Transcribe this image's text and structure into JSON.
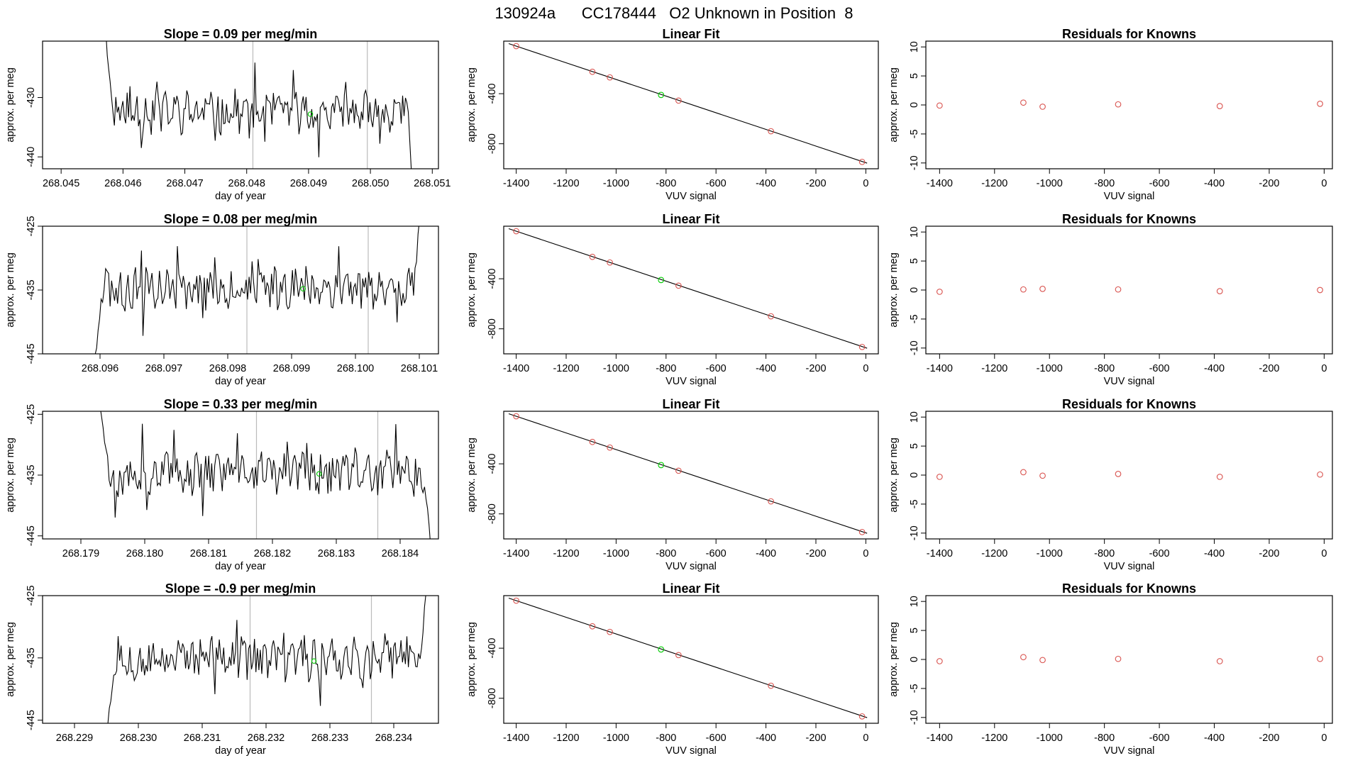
{
  "figure_title": "130924a      CC178444   O2 Unknown in Position  8",
  "colors": {
    "trace": "#000000",
    "highlight": "#00cc00",
    "known": "#d9534f",
    "vline": "#bbbbbb",
    "axis": "#000000"
  },
  "chart_data": [
    {
      "type": "line",
      "title": "Slope =  0.09  per meg/min",
      "xlabel": "day of year",
      "ylabel": "approx. per meg",
      "xlim": [
        268.0447,
        268.0511
      ],
      "ylim": [
        -442,
        -420.5
      ],
      "xticks": [
        "268.045",
        "268.046",
        "268.047",
        "268.048",
        "268.049",
        "268.050",
        "268.051"
      ],
      "xtick_values": [
        268.045,
        268.046,
        268.047,
        268.048,
        268.049,
        268.05,
        268.051
      ],
      "yticks": [
        "-430",
        "-440"
      ],
      "ytick_values": [
        -430,
        -440
      ],
      "trace_start": 268.0457,
      "trace_end": 268.05075,
      "trace_base": -432.5,
      "trace_entry": -417,
      "trace_exit": -460,
      "trace_seed": 11,
      "vlines": [
        268.0481,
        268.04995
      ],
      "highlight_point": {
        "x": 268.04903,
        "y": -432.8
      }
    },
    {
      "type": "line",
      "title": "Slope =  0.08  per meg/min",
      "xlabel": "day of year",
      "ylabel": "approx. per meg",
      "xlim": [
        268.0951,
        268.1013
      ],
      "ylim": [
        -445,
        -425
      ],
      "xticks": [
        "268.096",
        "268.097",
        "268.098",
        "268.099",
        "268.100",
        "268.101"
      ],
      "xtick_values": [
        268.096,
        268.097,
        268.098,
        268.099,
        268.1,
        268.101
      ],
      "yticks": [
        "-425",
        "-435",
        "-445"
      ],
      "ytick_values": [
        -425,
        -435,
        -445
      ],
      "trace_start": 268.0959,
      "trace_end": 268.10105,
      "trace_base": -434.5,
      "trace_entry": -448,
      "trace_exit": -420,
      "trace_seed": 23,
      "vlines": [
        268.0983,
        268.1002
      ],
      "highlight_point": {
        "x": 268.09918,
        "y": -434.8
      }
    },
    {
      "type": "line",
      "title": "Slope =  0.33  per meg/min",
      "xlabel": "day of year",
      "ylabel": "approx. per meg",
      "xlim": [
        268.1784,
        268.1846
      ],
      "ylim": [
        -445.5,
        -424.5
      ],
      "xticks": [
        "268.179",
        "268.180",
        "268.181",
        "268.182",
        "268.183",
        "268.184"
      ],
      "xtick_values": [
        268.179,
        268.18,
        268.181,
        268.182,
        268.183,
        268.184
      ],
      "yticks": [
        "-425",
        "-435",
        "-445"
      ],
      "ytick_values": [
        -425,
        -435,
        -445
      ],
      "trace_start": 268.1793,
      "trace_end": 268.1845,
      "trace_base": -434.5,
      "trace_entry": -423,
      "trace_exit": -448,
      "trace_seed": 37,
      "vlines": [
        268.18175,
        268.18365
      ],
      "highlight_point": {
        "x": 268.18273,
        "y": -434.8
      }
    },
    {
      "type": "line",
      "title": "Slope =  -0.9  per meg/min",
      "xlabel": "day of year",
      "ylabel": "approx. per meg",
      "xlim": [
        268.2285,
        268.2347
      ],
      "ylim": [
        -445.5,
        -425
      ],
      "xticks": [
        "268.229",
        "268.230",
        "268.231",
        "268.232",
        "268.233",
        "268.234"
      ],
      "xtick_values": [
        268.229,
        268.23,
        268.231,
        268.232,
        268.233,
        268.234
      ],
      "yticks": [
        "-425",
        "-435",
        "-445"
      ],
      "ytick_values": [
        -425,
        -435,
        -445
      ],
      "trace_start": 268.2295,
      "trace_end": 268.23455,
      "trace_base": -435,
      "trace_entry": -447,
      "trace_exit": -420,
      "trace_seed": 53,
      "vlines": [
        268.23175,
        268.23365
      ],
      "highlight_point": {
        "x": 268.23275,
        "y": -435.5
      }
    },
    {
      "type": "scatter",
      "title": "Linear Fit",
      "xlabel": "VUV signal",
      "ylabel": "approx. per meg",
      "xlim": [
        -1450,
        50
      ],
      "ylim": [
        -1000,
        20
      ],
      "xticks": [
        "-1400",
        "-1200",
        "-1000",
        "-800",
        "-600",
        "-400",
        "-200",
        "0"
      ],
      "xtick_values": [
        -1400,
        -1200,
        -1000,
        -800,
        -600,
        -400,
        -200,
        0
      ],
      "yticks": [
        "-400",
        "-800"
      ],
      "ytick_values": [
        -400,
        -800
      ],
      "known_points": [
        [
          -1400,
          -20
        ],
        [
          -1095,
          -225
        ],
        [
          -1025,
          -270
        ],
        [
          -750,
          -455
        ],
        [
          -380,
          -700
        ],
        [
          -15,
          -945
        ]
      ],
      "unknown_point": [
        -820,
        -410
      ],
      "fit_line": [
        [
          -1430,
          0
        ],
        [
          5,
          -955
        ]
      ]
    },
    {
      "type": "scatter",
      "title": "Linear Fit",
      "xlabel": "VUV signal",
      "ylabel": "approx. per meg",
      "xlim": [
        -1450,
        50
      ],
      "ylim": [
        -1000,
        20
      ],
      "xticks": [
        "-1400",
        "-1200",
        "-1000",
        "-800",
        "-600",
        "-400",
        "-200",
        "0"
      ],
      "xtick_values": [
        -1400,
        -1200,
        -1000,
        -800,
        -600,
        -400,
        -200,
        0
      ],
      "yticks": [
        "-400",
        "-800"
      ],
      "ytick_values": [
        -400,
        -800
      ],
      "known_points": [
        [
          -1400,
          -20
        ],
        [
          -1095,
          -225
        ],
        [
          -1025,
          -270
        ],
        [
          -750,
          -455
        ],
        [
          -380,
          -700
        ],
        [
          -15,
          -945
        ]
      ],
      "unknown_point": [
        -820,
        -410
      ],
      "fit_line": [
        [
          -1430,
          0
        ],
        [
          5,
          -955
        ]
      ]
    },
    {
      "type": "scatter",
      "title": "Linear Fit",
      "xlabel": "VUV signal",
      "ylabel": "approx. per meg",
      "xlim": [
        -1450,
        50
      ],
      "ylim": [
        -1000,
        20
      ],
      "xticks": [
        "-1400",
        "-1200",
        "-1000",
        "-800",
        "-600",
        "-400",
        "-200",
        "0"
      ],
      "xtick_values": [
        -1400,
        -1200,
        -1000,
        -800,
        -600,
        -400,
        -200,
        0
      ],
      "yticks": [
        "-400",
        "-800"
      ],
      "ytick_values": [
        -400,
        -800
      ],
      "known_points": [
        [
          -1400,
          -20
        ],
        [
          -1095,
          -225
        ],
        [
          -1025,
          -270
        ],
        [
          -750,
          -455
        ],
        [
          -380,
          -700
        ],
        [
          -15,
          -945
        ]
      ],
      "unknown_point": [
        -820,
        -410
      ],
      "fit_line": [
        [
          -1430,
          0
        ],
        [
          5,
          -955
        ]
      ]
    },
    {
      "type": "scatter",
      "title": "Linear Fit",
      "xlabel": "VUV signal",
      "ylabel": "approx. per meg",
      "xlim": [
        -1450,
        50
      ],
      "ylim": [
        -1000,
        20
      ],
      "xticks": [
        "-1400",
        "-1200",
        "-1000",
        "-800",
        "-600",
        "-400",
        "-200",
        "0"
      ],
      "xtick_values": [
        -1400,
        -1200,
        -1000,
        -800,
        -600,
        -400,
        -200,
        0
      ],
      "yticks": [
        "-400",
        "-800"
      ],
      "ytick_values": [
        -400,
        -800
      ],
      "known_points": [
        [
          -1400,
          -20
        ],
        [
          -1095,
          -225
        ],
        [
          -1025,
          -270
        ],
        [
          -750,
          -455
        ],
        [
          -380,
          -700
        ],
        [
          -15,
          -945
        ]
      ],
      "unknown_point": [
        -820,
        -410
      ],
      "fit_line": [
        [
          -1430,
          0
        ],
        [
          5,
          -955
        ]
      ]
    },
    {
      "type": "scatter",
      "title": "Residuals for Knowns",
      "xlabel": "VUV signal",
      "ylabel": "approx. per meg",
      "xlim": [
        -1450,
        30
      ],
      "ylim": [
        -11,
        11
      ],
      "xticks": [
        "-1400",
        "-1200",
        "-1000",
        "-800",
        "-600",
        "-400",
        "-200",
        "0"
      ],
      "xtick_values": [
        -1400,
        -1200,
        -1000,
        -800,
        -600,
        -400,
        -200,
        0
      ],
      "yticks": [
        "-10",
        "-5",
        "0",
        "5",
        "10"
      ],
      "ytick_values": [
        -10,
        -5,
        0,
        5,
        10
      ],
      "points": [
        [
          -1400,
          -0.1
        ],
        [
          -1095,
          0.4
        ],
        [
          -1025,
          -0.3
        ],
        [
          -750,
          0.1
        ],
        [
          -380,
          -0.2
        ],
        [
          -15,
          0.2
        ]
      ]
    },
    {
      "type": "scatter",
      "title": "Residuals for Knowns",
      "xlabel": "VUV signal",
      "ylabel": "approx. per meg",
      "xlim": [
        -1450,
        30
      ],
      "ylim": [
        -11,
        11
      ],
      "xticks": [
        "-1400",
        "-1200",
        "-1000",
        "-800",
        "-600",
        "-400",
        "-200",
        "0"
      ],
      "xtick_values": [
        -1400,
        -1200,
        -1000,
        -800,
        -600,
        -400,
        -200,
        0
      ],
      "yticks": [
        "-10",
        "-5",
        "0",
        "5",
        "10"
      ],
      "ytick_values": [
        -10,
        -5,
        0,
        5,
        10
      ],
      "points": [
        [
          -1400,
          -0.3
        ],
        [
          -1095,
          0.1
        ],
        [
          -1025,
          0.2
        ],
        [
          -750,
          0.1
        ],
        [
          -380,
          -0.2
        ],
        [
          -15,
          0.0
        ]
      ]
    },
    {
      "type": "scatter",
      "title": "Residuals for Knowns",
      "xlabel": "VUV signal",
      "ylabel": "approx. per meg",
      "xlim": [
        -1450,
        30
      ],
      "ylim": [
        -11,
        11
      ],
      "xticks": [
        "-1400",
        "-1200",
        "-1000",
        "-800",
        "-600",
        "-400",
        "-200",
        "0"
      ],
      "xtick_values": [
        -1400,
        -1200,
        -1000,
        -800,
        -600,
        -400,
        -200,
        0
      ],
      "yticks": [
        "-10",
        "-5",
        "0",
        "5",
        "10"
      ],
      "ytick_values": [
        -10,
        -5,
        0,
        5,
        10
      ],
      "points": [
        [
          -1400,
          -0.3
        ],
        [
          -1095,
          0.5
        ],
        [
          -1025,
          -0.1
        ],
        [
          -750,
          0.2
        ],
        [
          -380,
          -0.3
        ],
        [
          -15,
          0.1
        ]
      ]
    },
    {
      "type": "scatter",
      "title": "Residuals for Knowns",
      "xlabel": "VUV signal",
      "ylabel": "approx. per meg",
      "xlim": [
        -1450,
        30
      ],
      "ylim": [
        -11,
        11
      ],
      "xticks": [
        "-1400",
        "-1200",
        "-1000",
        "-800",
        "-600",
        "-400",
        "-200",
        "0"
      ],
      "xtick_values": [
        -1400,
        -1200,
        -1000,
        -800,
        -600,
        -400,
        -200,
        0
      ],
      "yticks": [
        "-10",
        "-5",
        "0",
        "5",
        "10"
      ],
      "ytick_values": [
        -10,
        -5,
        0,
        5,
        10
      ],
      "points": [
        [
          -1400,
          -0.3
        ],
        [
          -1095,
          0.4
        ],
        [
          -1025,
          -0.1
        ],
        [
          -750,
          0.1
        ],
        [
          -380,
          -0.3
        ],
        [
          -15,
          0.1
        ]
      ]
    }
  ]
}
